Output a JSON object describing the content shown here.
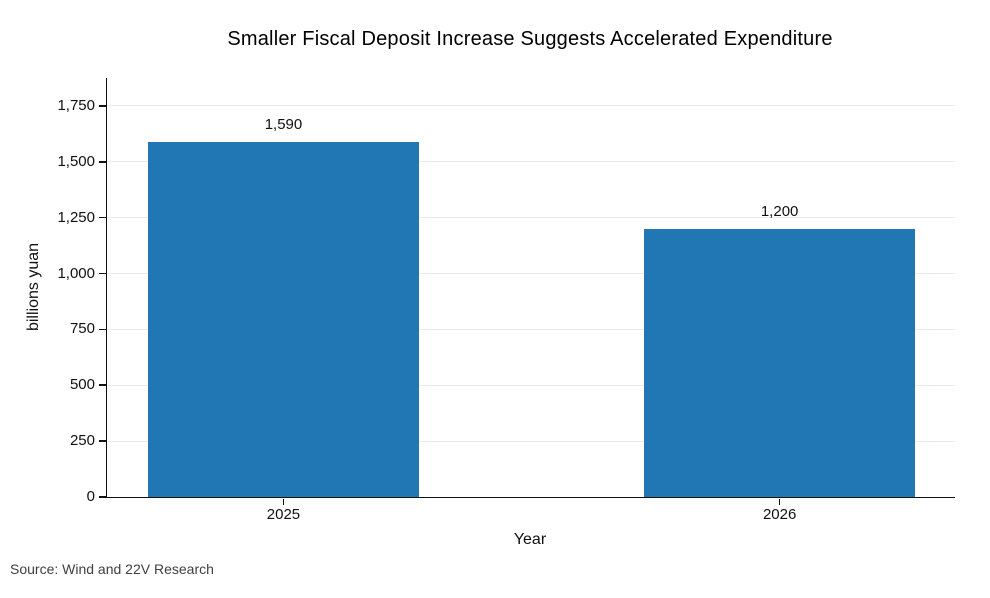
{
  "title": "Smaller Fiscal Deposit Increase Suggests Accelerated Expenditure",
  "source_note": "Source: Wind and 22V Research",
  "colors": {
    "bar": "#2077b4",
    "grid": "#ececec",
    "axis": "#111111",
    "text": "#111111",
    "source_text": "#404040"
  },
  "chart_data": {
    "type": "bar",
    "title": "Smaller Fiscal Deposit Increase Suggests Accelerated Expenditure",
    "categories": [
      "2025",
      "2026"
    ],
    "values": [
      1590,
      1200
    ],
    "value_labels": [
      "1,590",
      "1,200"
    ],
    "xlabel": "Year",
    "ylabel": "billions yuan",
    "yticks": [
      0,
      250,
      500,
      750,
      1000,
      1250,
      1500,
      1750
    ],
    "ytick_labels": [
      "0",
      "250",
      "500",
      "750",
      "1,000",
      "1,250",
      "1,500",
      "1,750"
    ],
    "ylim": [
      0,
      1875
    ],
    "grid": "horizontal",
    "legend": "none",
    "annotation": "Source: Wind and 22V Research"
  }
}
